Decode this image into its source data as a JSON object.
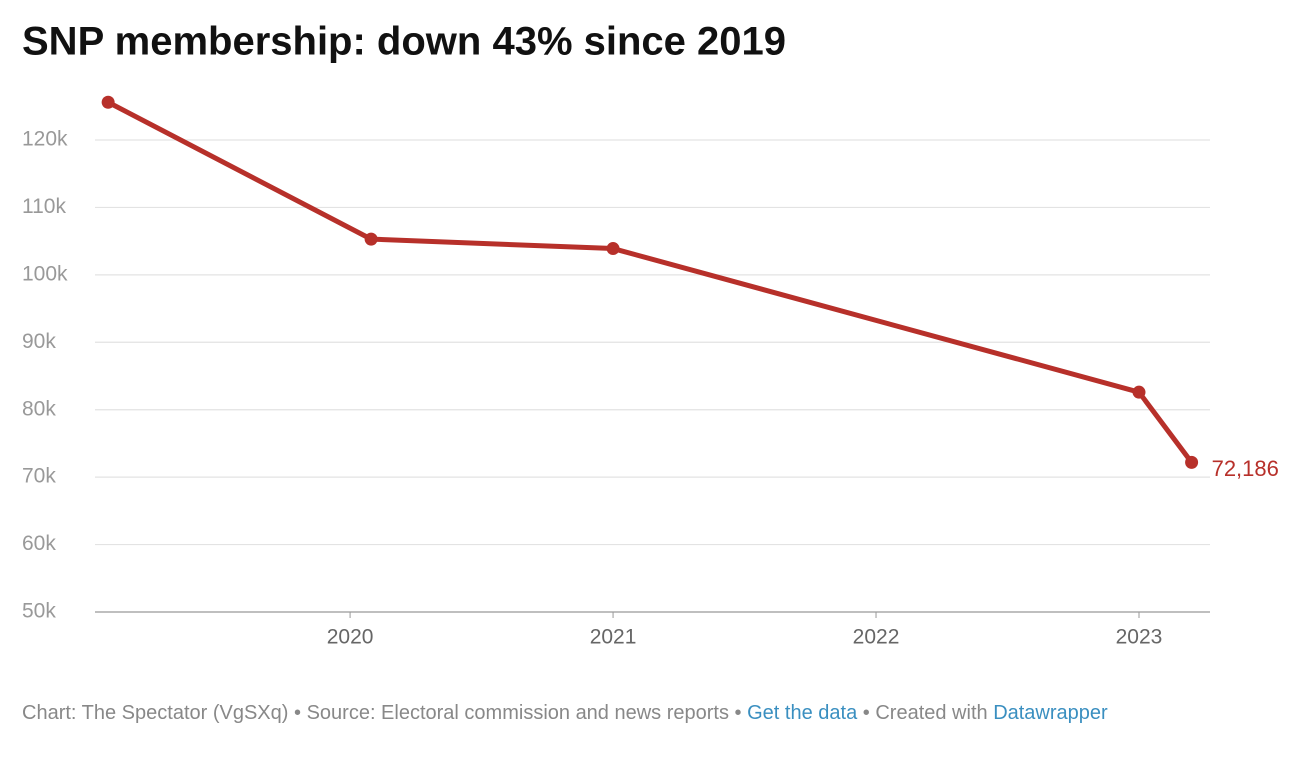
{
  "chart_data": {
    "type": "line",
    "title": "SNP membership: down 43% since 2019",
    "x": [
      2019.08,
      2020.08,
      2021.0,
      2023.0,
      2023.2
    ],
    "series": [
      {
        "name": "SNP membership",
        "color": "#b7302a",
        "values": [
          125600,
          105300,
          103900,
          82600,
          72186
        ],
        "value_labels": [
          null,
          null,
          null,
          null,
          "72,186"
        ]
      }
    ],
    "xlim": [
      2019.03,
      2023.27
    ],
    "xticks": [
      2020,
      2021,
      2022,
      2023
    ],
    "ylim": [
      50000,
      127000
    ],
    "yticks": [
      {
        "value": 50000,
        "label": "50k"
      },
      {
        "value": 60000,
        "label": "60k"
      },
      {
        "value": 70000,
        "label": "70k"
      },
      {
        "value": 80000,
        "label": "80k"
      },
      {
        "value": 90000,
        "label": "90k"
      },
      {
        "value": 100000,
        "label": "100k"
      },
      {
        "value": 110000,
        "label": "110k"
      },
      {
        "value": 120000,
        "label": "120k"
      }
    ],
    "grid": true
  },
  "footer": {
    "credit": "Chart: The Spectator (VgSXq)",
    "separator": "•",
    "source": "Source: Electoral commission and news reports",
    "data_link": "Get the data",
    "made_with": "Created with",
    "tool": "Datawrapper"
  }
}
